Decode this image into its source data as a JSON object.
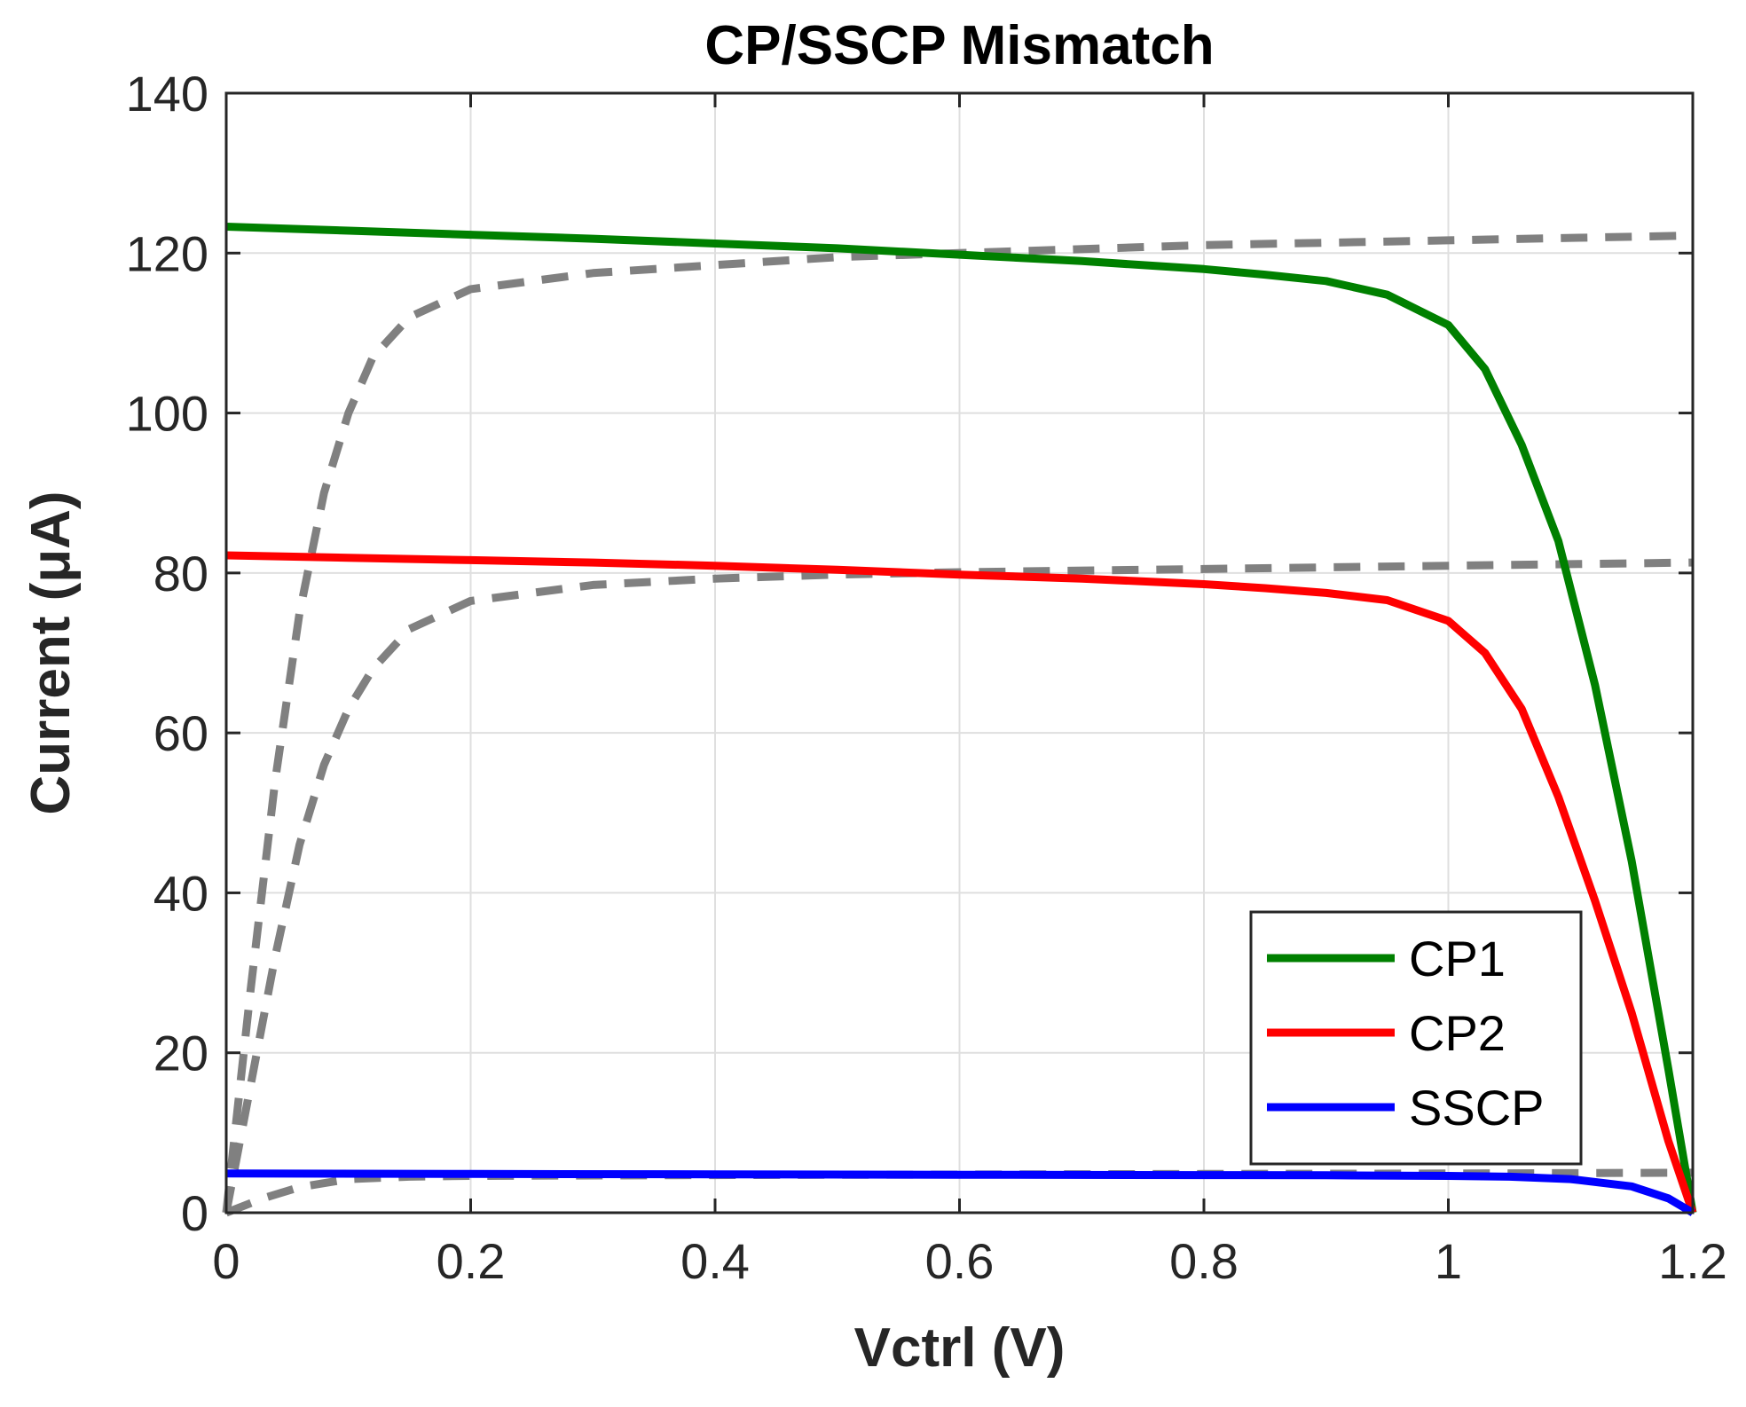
{
  "chart_data": {
    "type": "line",
    "title": "CP/SSCP Mismatch",
    "xlabel": "Vctrl (V)",
    "ylabel": "Current (μA)",
    "xlim": [
      0,
      1.2
    ],
    "ylim": [
      0,
      140
    ],
    "xticks": [
      0,
      0.2,
      0.4,
      0.6,
      0.8,
      1,
      1.2
    ],
    "xtick_labels": [
      "0",
      "0.2",
      "0.4",
      "0.6",
      "0.8",
      "1",
      "1.2"
    ],
    "yticks": [
      0,
      20,
      40,
      60,
      80,
      100,
      120,
      140
    ],
    "ytick_labels": [
      "0",
      "20",
      "40",
      "60",
      "80",
      "100",
      "120",
      "140"
    ],
    "grid": true,
    "legend_position": "bottom-right",
    "series": [
      {
        "name": "CP1",
        "color": "#008000",
        "style": "solid",
        "in_legend": true,
        "x": [
          0,
          0.1,
          0.2,
          0.3,
          0.4,
          0.5,
          0.6,
          0.7,
          0.8,
          0.85,
          0.9,
          0.95,
          1.0,
          1.03,
          1.06,
          1.09,
          1.12,
          1.15,
          1.18,
          1.2
        ],
        "y": [
          123.3,
          122.8,
          122.3,
          121.8,
          121.2,
          120.6,
          119.8,
          119,
          118,
          117.3,
          116.5,
          114.8,
          111,
          105.5,
          96,
          84,
          66,
          44,
          18,
          0
        ]
      },
      {
        "name": "CP2",
        "color": "#ff0000",
        "style": "solid",
        "in_legend": true,
        "x": [
          0,
          0.1,
          0.2,
          0.3,
          0.4,
          0.5,
          0.6,
          0.7,
          0.8,
          0.85,
          0.9,
          0.95,
          1.0,
          1.03,
          1.06,
          1.09,
          1.12,
          1.15,
          1.18,
          1.2
        ],
        "y": [
          82.2,
          81.9,
          81.6,
          81.3,
          80.9,
          80.4,
          79.8,
          79.3,
          78.6,
          78.1,
          77.5,
          76.6,
          74,
          70,
          63,
          52,
          39,
          25,
          9,
          0
        ]
      },
      {
        "name": "SSCP",
        "color": "#0000ff",
        "style": "solid",
        "in_legend": true,
        "x": [
          0,
          0.2,
          0.4,
          0.6,
          0.8,
          0.9,
          1.0,
          1.05,
          1.1,
          1.15,
          1.18,
          1.2
        ],
        "y": [
          4.9,
          4.85,
          4.8,
          4.75,
          4.7,
          4.68,
          4.6,
          4.5,
          4.2,
          3.3,
          1.8,
          0
        ]
      },
      {
        "name": "CP1 (reference)",
        "color": "#808080",
        "style": "dashed",
        "in_legend": false,
        "x": [
          0,
          0.02,
          0.04,
          0.06,
          0.08,
          0.1,
          0.12,
          0.15,
          0.2,
          0.3,
          0.4,
          0.5,
          0.6,
          0.8,
          1.0,
          1.2
        ],
        "y": [
          0,
          28,
          54,
          75,
          90,
          100,
          107,
          112,
          115.5,
          117.5,
          118.5,
          119.5,
          120,
          121,
          121.6,
          122.2
        ]
      },
      {
        "name": "CP2 (reference)",
        "color": "#808080",
        "style": "dashed",
        "in_legend": false,
        "x": [
          0,
          0.02,
          0.04,
          0.06,
          0.08,
          0.1,
          0.12,
          0.15,
          0.2,
          0.3,
          0.4,
          0.5,
          0.6,
          0.8,
          1.0,
          1.2
        ],
        "y": [
          0,
          16,
          32,
          46,
          56,
          63,
          68,
          73,
          76.5,
          78.5,
          79.3,
          79.8,
          80.1,
          80.5,
          80.9,
          81.3
        ]
      },
      {
        "name": "SSCP (reference)",
        "color": "#808080",
        "style": "dashed",
        "in_legend": false,
        "x": [
          0,
          0.03,
          0.06,
          0.1,
          0.15,
          0.2,
          0.4,
          0.8,
          1.0,
          1.2
        ],
        "y": [
          0,
          1.8,
          3.2,
          4.2,
          4.5,
          4.6,
          4.7,
          4.85,
          4.9,
          5.0
        ]
      }
    ]
  }
}
